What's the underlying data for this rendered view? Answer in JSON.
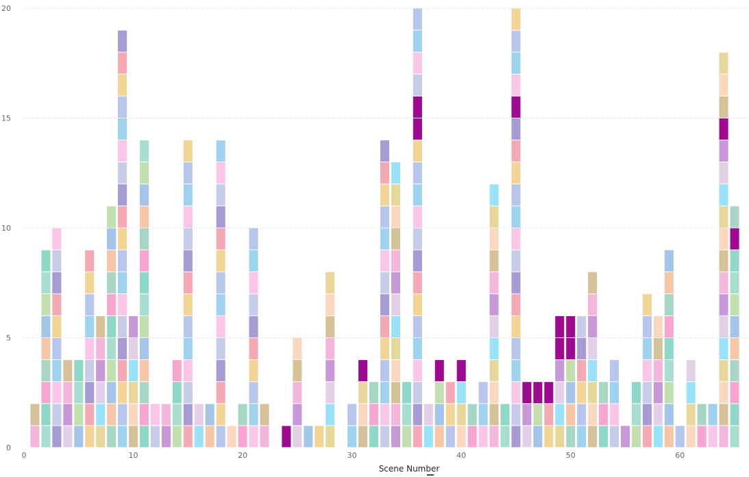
{
  "chart_data": {
    "type": "bar",
    "stacked": true,
    "title": "",
    "xlabel": "Scene Number",
    "ylabel": "",
    "xlim": [
      0,
      66
    ],
    "ylim": [
      0,
      20
    ],
    "x_ticks": [
      "0",
      "10",
      "20",
      "30",
      "40",
      "50",
      "60"
    ],
    "y_ticks": [
      "0",
      "5",
      "10",
      "15",
      "20"
    ],
    "grid": true,
    "palette": [
      "#f9c6e8",
      "#f5c6a8",
      "#c799d6",
      "#9fd2ec",
      "#a4c5e8",
      "#f3b6dd",
      "#b7c6ea",
      "#c3dfb0",
      "#d5c29a",
      "#f2d497",
      "#a8ddd2",
      "#f9d7c0",
      "#f3aab4",
      "#8fd8c8",
      "#e7d79a",
      "#a89ad3",
      "#f6a6d0",
      "#9ae2f7",
      "#c7cce8",
      "#a8d6c4",
      "#e4cfe8"
    ],
    "accent": "#9b0a8f",
    "scenes": [
      1,
      2,
      3,
      4,
      5,
      6,
      7,
      8,
      9,
      10,
      11,
      12,
      13,
      14,
      15,
      16,
      17,
      18,
      19,
      20,
      21,
      22,
      24,
      25,
      26,
      27,
      28,
      30,
      31,
      32,
      33,
      34,
      35,
      36,
      37,
      38,
      39,
      40,
      41,
      42,
      43,
      44,
      45,
      46,
      47,
      48,
      49,
      50,
      51,
      52,
      53,
      54,
      55,
      56,
      57,
      58,
      59,
      60,
      61,
      62,
      63,
      64,
      65
    ],
    "values": [
      2,
      9,
      10,
      4,
      4,
      9,
      6,
      11,
      19,
      6,
      14,
      2,
      2,
      4,
      14,
      2,
      2,
      14,
      1,
      2,
      10,
      2,
      1,
      5,
      1,
      1,
      8,
      2,
      4,
      3,
      14,
      13,
      3,
      20,
      2,
      4,
      3,
      4,
      2,
      3,
      12,
      2,
      20,
      3,
      3,
      3,
      6,
      6,
      6,
      8,
      3,
      4,
      1,
      3,
      7,
      6,
      9,
      1,
      4,
      2,
      2,
      18,
      11
    ],
    "accent_segments": [
      [
        24,
        1,
        1
      ],
      [
        31,
        4,
        1
      ],
      [
        36,
        15,
        2
      ],
      [
        38,
        4,
        1
      ],
      [
        40,
        4,
        1
      ],
      [
        45,
        16,
        1
      ],
      [
        46,
        3,
        1
      ],
      [
        47,
        3,
        1
      ],
      [
        48,
        3,
        1
      ],
      [
        49,
        5,
        2
      ],
      [
        50,
        5,
        2
      ],
      [
        64,
        15,
        1
      ],
      [
        65,
        10,
        1
      ]
    ]
  }
}
